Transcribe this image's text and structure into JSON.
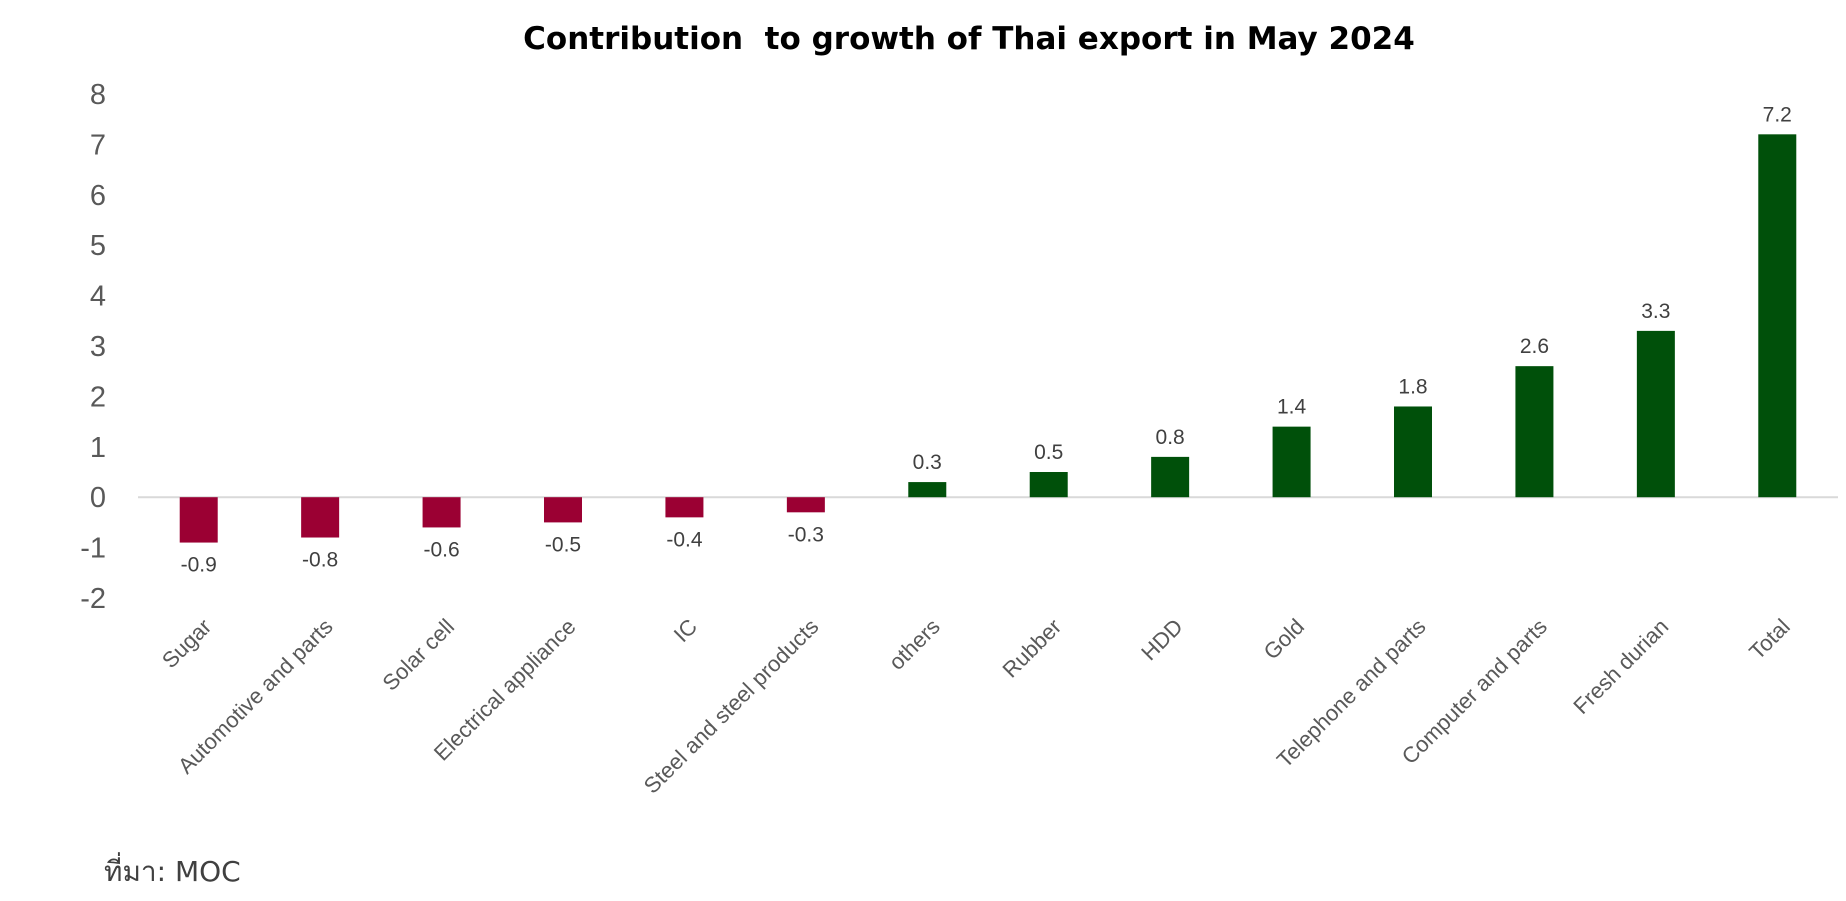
{
  "chart_data": {
    "type": "bar",
    "title": "Contribution  to growth of Thai export in May 2024",
    "categories": [
      "Sugar",
      "Automotive and parts",
      "Solar cell",
      "Electrical appliance",
      "IC",
      "Steel and steel products",
      "others",
      "Rubber",
      "HDD",
      "Gold",
      "Telephone and parts",
      "Computer and parts",
      "Fresh durian",
      "Total"
    ],
    "values": [
      -0.9,
      -0.8,
      -0.6,
      -0.5,
      -0.4,
      -0.3,
      0.3,
      0.5,
      0.8,
      1.4,
      1.8,
      2.6,
      3.3,
      7.2
    ],
    "data_labels": [
      "-0.9",
      "-0.8",
      "-0.6",
      "-0.5",
      "-0.4",
      "-0.3",
      "0.3",
      "0.5",
      "0.8",
      "1.4",
      "1.8",
      "2.6",
      "3.3",
      "7.2"
    ],
    "ylim": [
      -2,
      8
    ],
    "yticks": [
      8,
      7,
      6,
      5,
      4,
      3,
      2,
      1,
      0,
      -1,
      -2
    ],
    "xlabel": "",
    "ylabel": "",
    "grid": false,
    "legend": "none",
    "colors": {
      "negative": "#9b0033",
      "positive": "#00500a",
      "axis": "#d9d9d9"
    }
  },
  "source": "ที่มา: MOC"
}
